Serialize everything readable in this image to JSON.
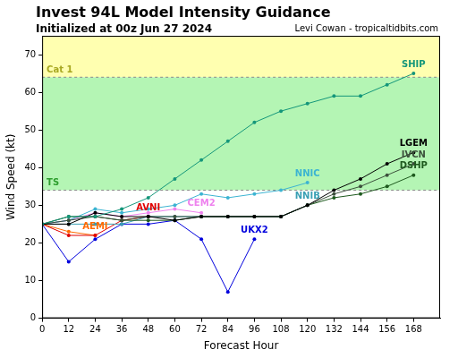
{
  "chart_data": {
    "type": "line",
    "title": "Invest 94L Model Intensity Guidance",
    "subtitle": "Initialized at 00z Jun 27 2024",
    "credit": "Levi Cowan - tropicaltidbits.com",
    "x_label": "Forecast Hour",
    "y_label": "Wind Speed (kt)",
    "x": [
      0,
      12,
      24,
      36,
      48,
      60,
      72,
      84,
      96,
      108,
      120,
      132,
      144,
      156,
      168
    ],
    "xlim": [
      0,
      180
    ],
    "xticks": [
      0,
      12,
      24,
      36,
      48,
      60,
      72,
      84,
      96,
      108,
      120,
      132,
      144,
      156,
      168
    ],
    "ylim": [
      0,
      75
    ],
    "yticks": [
      0,
      10,
      20,
      30,
      40,
      50,
      60,
      70
    ],
    "grid": false,
    "marker": "circle",
    "bands": [
      {
        "label": "Cat 1",
        "from": 64,
        "to": 75,
        "color": "#ffffb0"
      },
      {
        "label": "TS",
        "from": 34,
        "to": 64,
        "color": "#b4f5b4"
      }
    ],
    "series": [
      {
        "name": "SHIP",
        "color": "#14967a",
        "values": [
          25,
          27,
          27,
          29,
          32,
          37,
          42,
          47,
          52,
          55,
          57,
          59,
          59,
          62,
          65
        ]
      },
      {
        "name": "LGEM",
        "color": "#000000",
        "values": [
          25,
          25,
          28,
          27,
          27,
          26,
          27,
          27,
          27,
          27,
          30,
          34,
          37,
          41,
          44
        ]
      },
      {
        "name": "IVCN",
        "color": "#3c503c",
        "values": [
          25,
          26,
          27,
          26,
          27,
          27,
          27,
          27,
          27,
          27,
          30,
          33,
          35,
          38,
          41
        ]
      },
      {
        "name": "DSHP",
        "color": "#1e5a1e",
        "values": [
          25,
          27,
          27,
          26,
          26,
          26,
          27,
          27,
          27,
          27,
          30,
          32,
          33,
          35,
          38
        ]
      },
      {
        "name": "NNIC",
        "color": "#3cb4d2",
        "values": [
          25,
          26,
          29,
          28,
          29,
          30,
          33,
          32,
          33,
          34,
          36,
          null,
          null,
          null,
          null
        ]
      },
      {
        "name": "NNIB",
        "color": "#3aa0b4",
        "values": [
          25,
          25,
          25,
          25,
          27,
          27,
          27,
          27,
          27,
          27,
          30,
          null,
          null,
          null,
          null
        ]
      },
      {
        "name": "AVNI",
        "color": "#e00000",
        "values": [
          25,
          22,
          22,
          26,
          27,
          null,
          null,
          null,
          null,
          null,
          null,
          null,
          null,
          null,
          null
        ]
      },
      {
        "name": "AEMI",
        "color": "#ff6a00",
        "values": [
          25,
          23,
          22,
          null,
          null,
          null,
          null,
          null,
          null,
          null,
          null,
          null,
          null,
          null,
          null
        ]
      },
      {
        "name": "CEM2",
        "color": "#ee82ee",
        "values": [
          25,
          26,
          28,
          27,
          28,
          29,
          28,
          null,
          null,
          null,
          null,
          null,
          null,
          null,
          null
        ]
      },
      {
        "name": "UKX2",
        "color": "#0000dd",
        "values": [
          25,
          15,
          21,
          25,
          25,
          26,
          21,
          7,
          21,
          null,
          null,
          null,
          null,
          null,
          null
        ]
      }
    ]
  }
}
